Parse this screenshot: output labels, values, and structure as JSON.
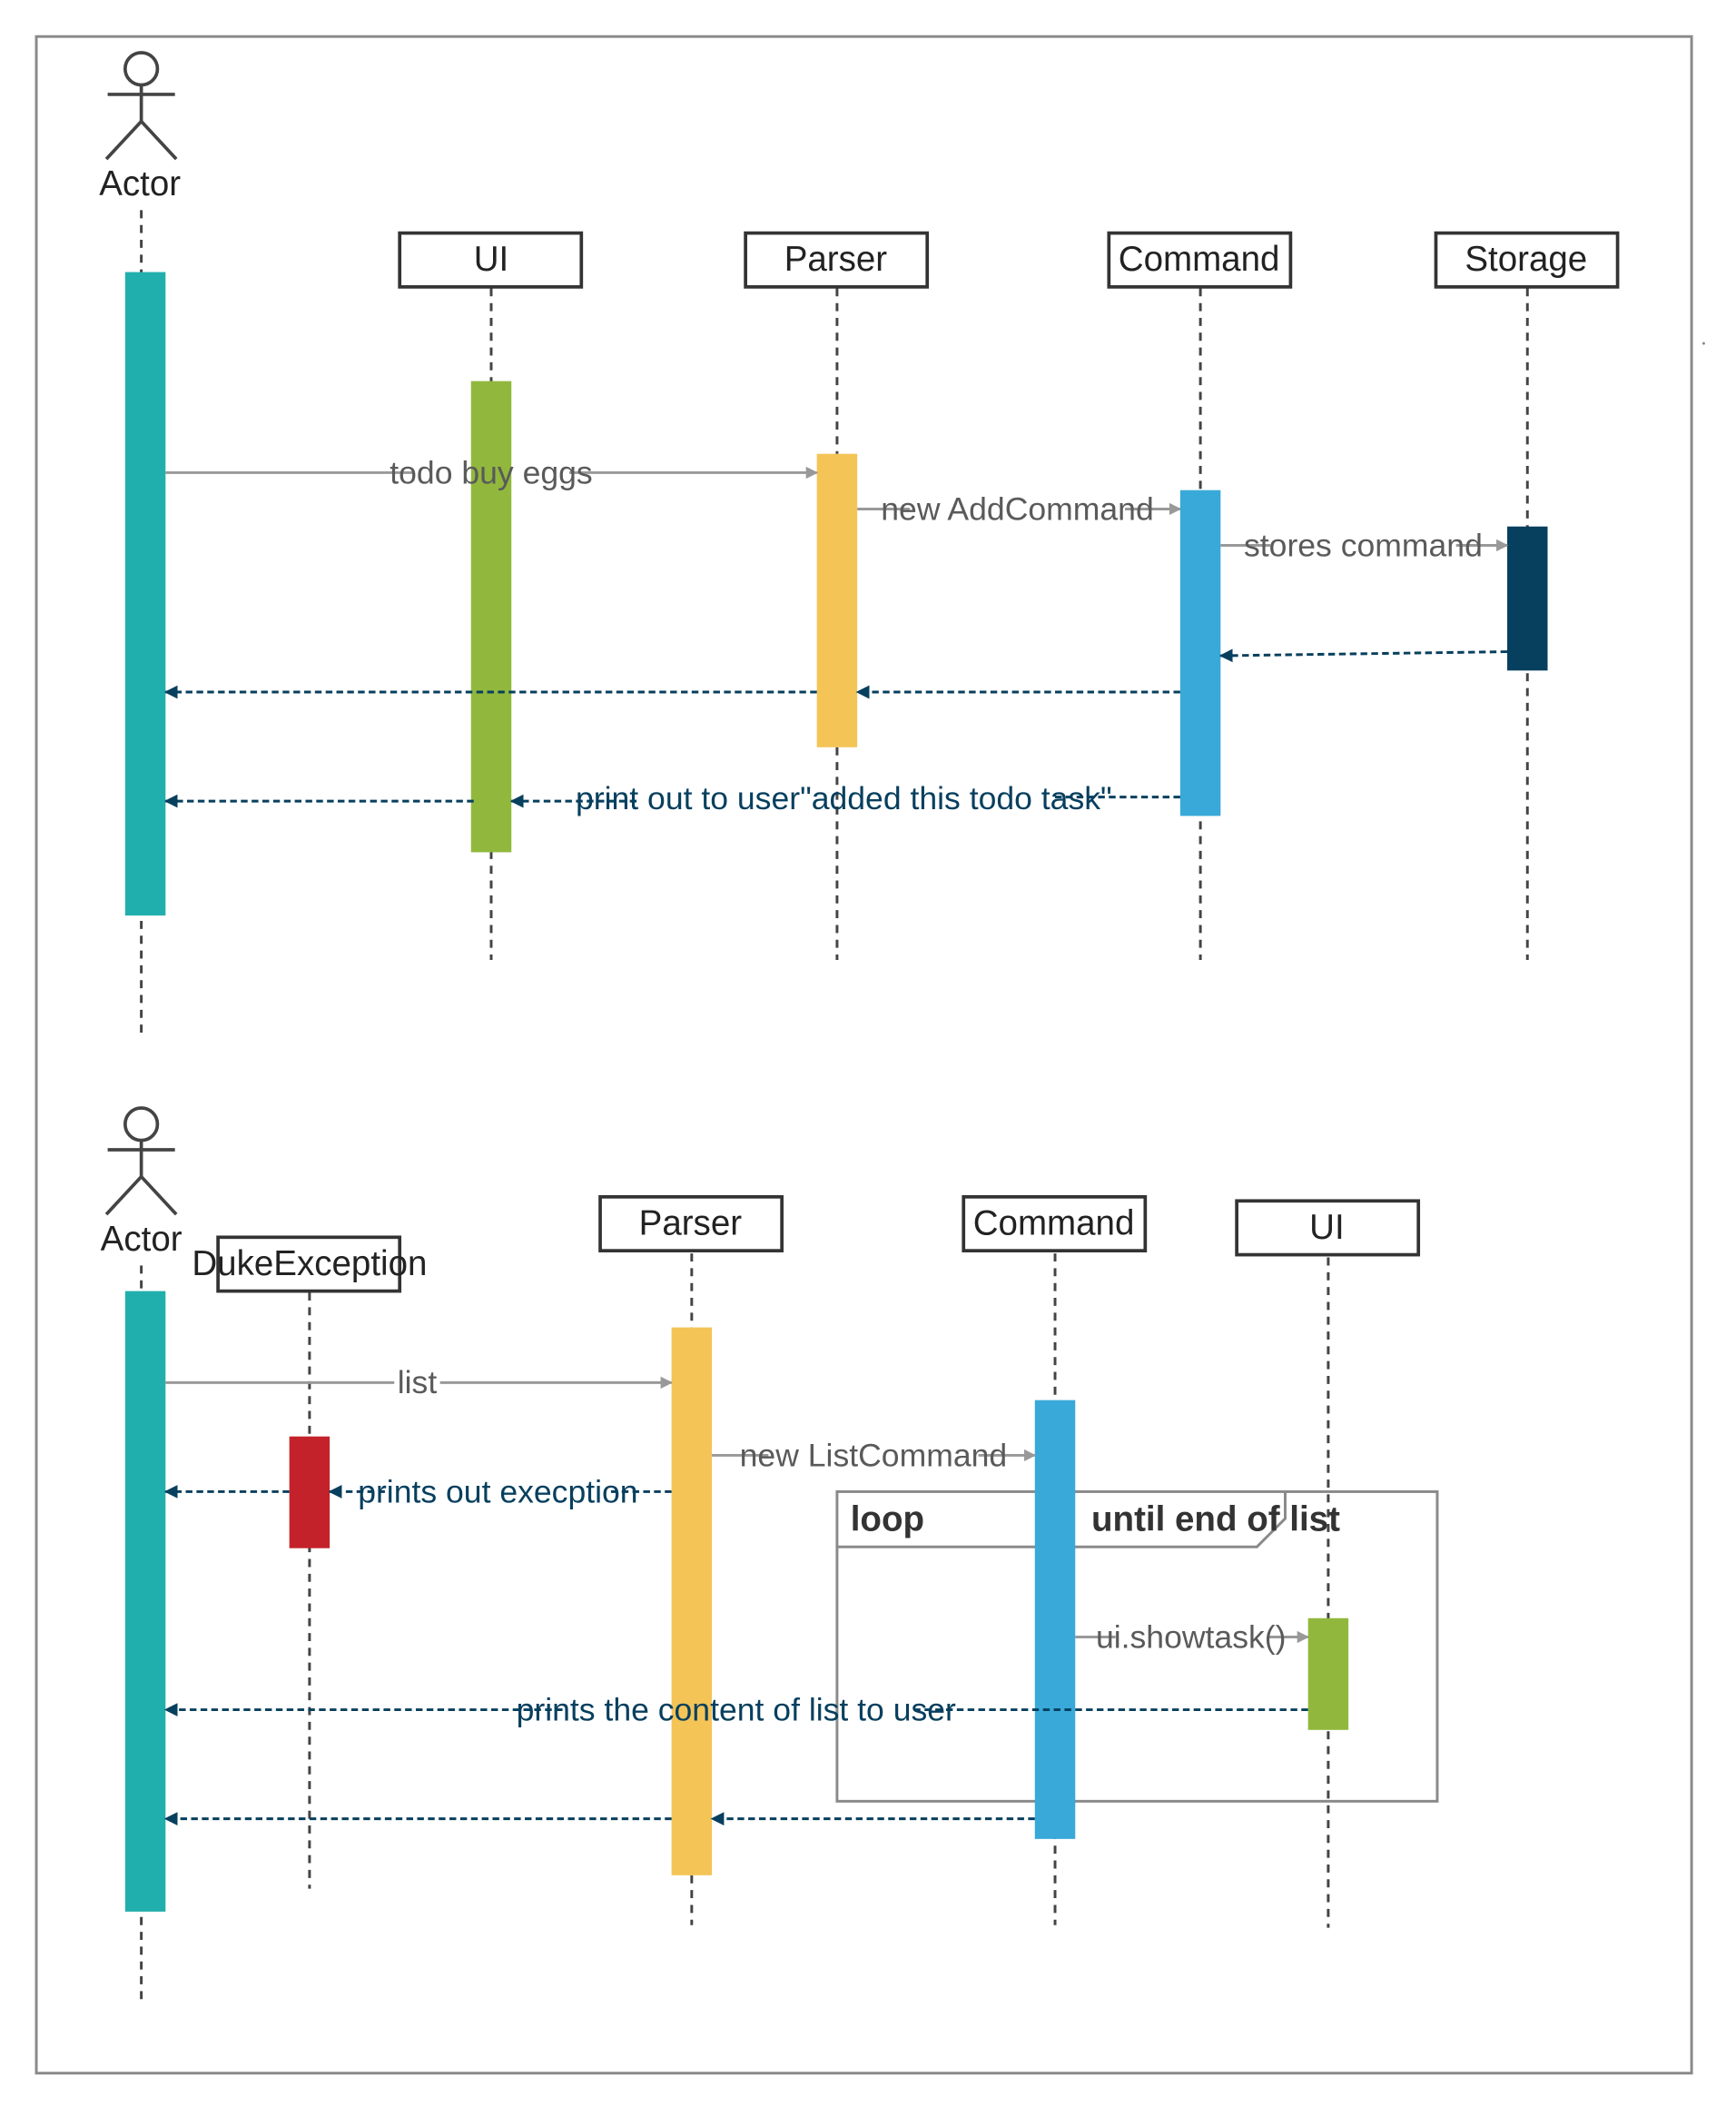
{
  "colors": {
    "actor_bar": "#21AFAD",
    "ui_bar": "#91B83D",
    "parser_bar": "#F4C457",
    "command_bar": "#38A9D8",
    "storage_bar": "#073F5E",
    "exception_bar": "#C4222B",
    "solid_message": "#999999",
    "solid_message_text": "#5A5A5A",
    "return_message": "#073F5E",
    "box_border": "#333333",
    "frame": "#8A8A8A"
  },
  "diagram1": {
    "actor": {
      "label": "Actor",
      "icon": "stick-figure-icon"
    },
    "lifelines": [
      {
        "id": "ui",
        "label": "UI"
      },
      {
        "id": "parser",
        "label": "Parser"
      },
      {
        "id": "command",
        "label": "Command"
      },
      {
        "id": "storage",
        "label": "Storage"
      }
    ],
    "messages": [
      {
        "from": "actor",
        "to": "parser",
        "label": "todo buy eggs",
        "kind": "call"
      },
      {
        "from": "parser",
        "to": "command",
        "label": "new AddCommand",
        "kind": "call"
      },
      {
        "from": "command",
        "to": "storage",
        "label": "stores command",
        "kind": "call"
      },
      {
        "from": "storage",
        "to": "command",
        "label": "",
        "kind": "return"
      },
      {
        "from": "command",
        "to": "parser",
        "label": "",
        "kind": "return"
      },
      {
        "from": "parser",
        "to": "actor",
        "label": "",
        "kind": "return"
      },
      {
        "from": "command",
        "to": "ui",
        "label": "print out to user\"added this todo task\"",
        "kind": "return"
      },
      {
        "from": "ui",
        "to": "actor",
        "label": "",
        "kind": "return"
      }
    ]
  },
  "diagram2": {
    "actor": {
      "label": "Actor",
      "icon": "stick-figure-icon"
    },
    "lifelines": [
      {
        "id": "dukeexception",
        "label": "DukeException"
      },
      {
        "id": "parser",
        "label": "Parser"
      },
      {
        "id": "command",
        "label": "Command"
      },
      {
        "id": "ui",
        "label": "UI"
      }
    ],
    "loop_frame": {
      "operator": "loop",
      "guard": "until end of list"
    },
    "messages": [
      {
        "from": "actor",
        "to": "parser",
        "label": "list",
        "kind": "call"
      },
      {
        "from": "parser",
        "to": "command",
        "label": "new ListCommand",
        "kind": "call"
      },
      {
        "from": "parser",
        "to": "dukeexception",
        "label": "prints out execption",
        "kind": "return"
      },
      {
        "from": "dukeexception",
        "to": "actor",
        "label": "",
        "kind": "return"
      },
      {
        "from": "command",
        "to": "ui",
        "label": "ui.showtask()",
        "kind": "call"
      },
      {
        "from": "ui",
        "to": "actor",
        "label": "prints the content of list to user",
        "kind": "return"
      },
      {
        "from": "command",
        "to": "parser",
        "label": "",
        "kind": "return"
      },
      {
        "from": "parser",
        "to": "actor",
        "label": "",
        "kind": "return"
      }
    ]
  }
}
